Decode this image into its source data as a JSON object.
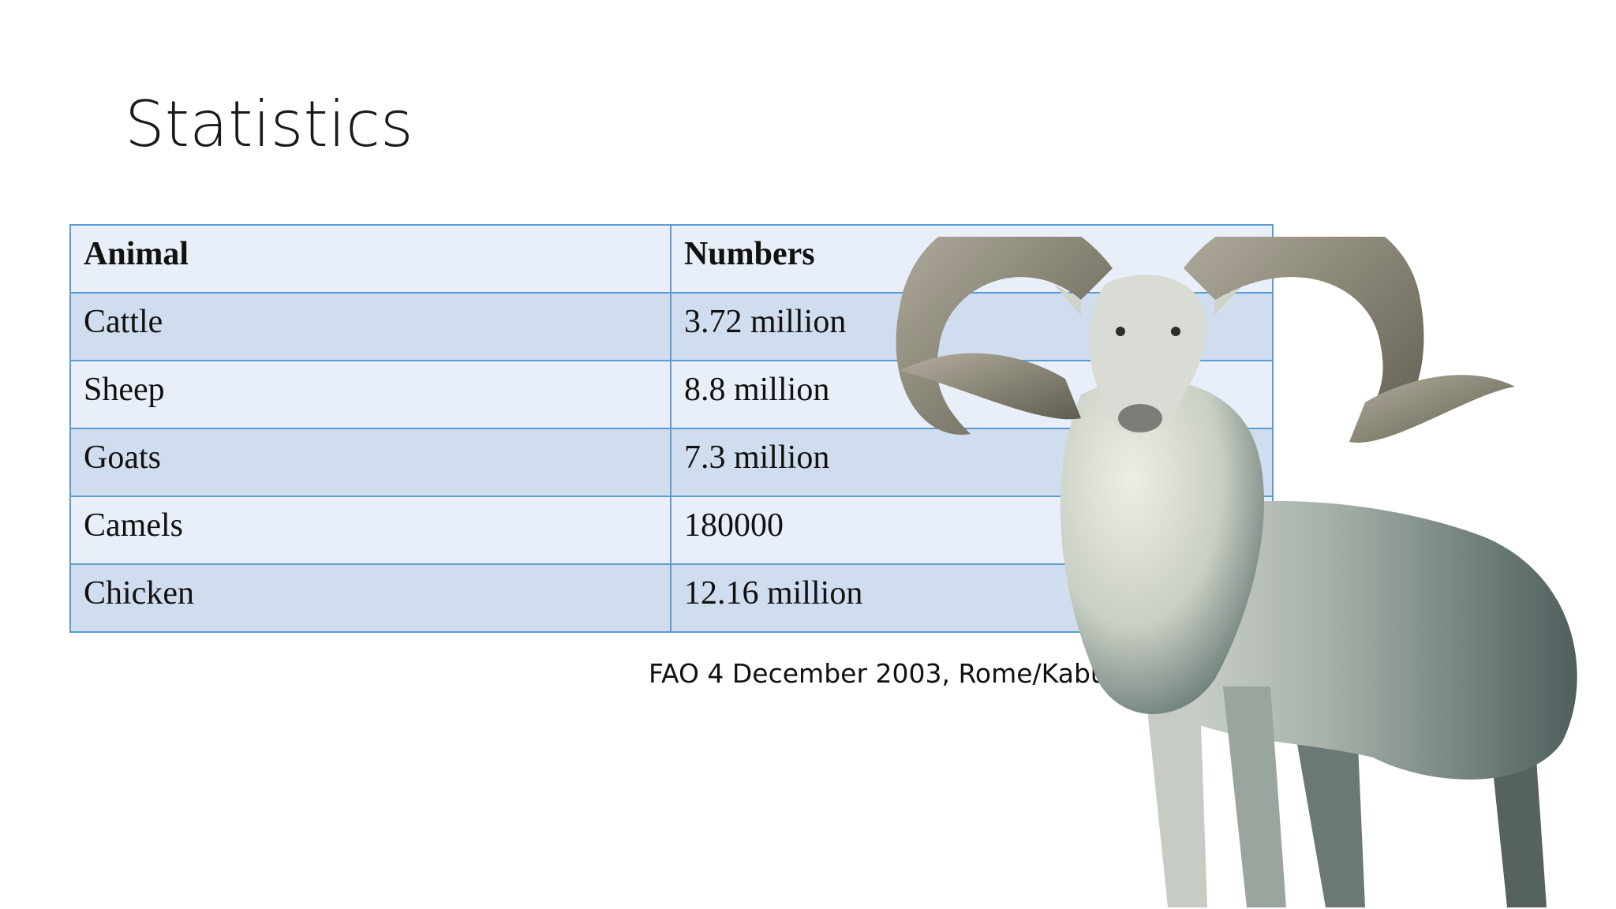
{
  "slide": {
    "title": "Statistics",
    "source": "FAO 4 December 2003, Rome/Kabul"
  },
  "table": {
    "headers": [
      "Animal",
      "Numbers"
    ],
    "rows": [
      [
        "Cattle",
        "3.72 million"
      ],
      [
        "Sheep",
        "8.8 million"
      ],
      [
        "Goats",
        "7.3 million"
      ],
      [
        "Camels",
        "180000"
      ],
      [
        "Chicken",
        "12.16 million"
      ]
    ]
  },
  "image": {
    "subject": "ram-illustration",
    "colors": {
      "horn": "#8a8676",
      "fleece": "#d8dbd2",
      "shadow": "#5e6f6c"
    }
  },
  "colors": {
    "table_border": "#5b9bd5",
    "row_light": "#e9eff8",
    "row_dark": "#d0ddee"
  }
}
